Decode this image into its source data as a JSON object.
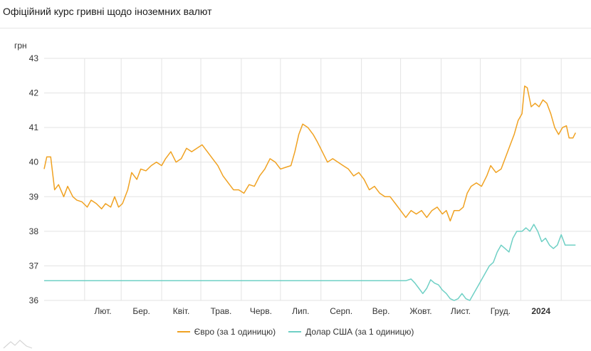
{
  "header": {
    "title": "Офіційний курс гривні щодо іноземних валют"
  },
  "colors": {
    "euro": "#f0a222",
    "usd": "#6fd0c5",
    "grid": "#e3e3e3"
  },
  "chart_data": {
    "type": "line",
    "title": "Офіційний курс гривні щодо іноземних валют",
    "ylabel": "грн",
    "xlabel": "",
    "ylim": [
      36,
      43
    ],
    "yticks": [
      36,
      37,
      38,
      39,
      40,
      41,
      42,
      43
    ],
    "grid": true,
    "legend_position": "bottom",
    "x_tick_labels": [
      "Лют.",
      "Бер.",
      "Квіт.",
      "Трав.",
      "Черв.",
      "Лип.",
      "Серп.",
      "Вер.",
      "Жовт.",
      "Лист.",
      "Груд.",
      "2024"
    ],
    "series": [
      {
        "name": "Євро (за 1 одиницю)",
        "color": "#f0a222",
        "points": [
          [
            "2023-01-01",
            39.8
          ],
          [
            "2023-01-03",
            40.15
          ],
          [
            "2023-01-06",
            40.15
          ],
          [
            "2023-01-09",
            39.2
          ],
          [
            "2023-01-12",
            39.35
          ],
          [
            "2023-01-16",
            39.0
          ],
          [
            "2023-01-19",
            39.3
          ],
          [
            "2023-01-23",
            39.0
          ],
          [
            "2023-01-26",
            38.9
          ],
          [
            "2023-01-30",
            38.85
          ],
          [
            "2023-02-03",
            38.7
          ],
          [
            "2023-02-06",
            38.9
          ],
          [
            "2023-02-10",
            38.8
          ],
          [
            "2023-02-14",
            38.65
          ],
          [
            "2023-02-17",
            38.8
          ],
          [
            "2023-02-21",
            38.7
          ],
          [
            "2023-02-24",
            39.0
          ],
          [
            "2023-02-27",
            38.7
          ],
          [
            "2023-03-02",
            38.8
          ],
          [
            "2023-03-06",
            39.2
          ],
          [
            "2023-03-09",
            39.7
          ],
          [
            "2023-03-13",
            39.5
          ],
          [
            "2023-03-16",
            39.8
          ],
          [
            "2023-03-20",
            39.75
          ],
          [
            "2023-03-24",
            39.9
          ],
          [
            "2023-03-28",
            40.0
          ],
          [
            "2023-04-01",
            39.9
          ],
          [
            "2023-04-04",
            40.1
          ],
          [
            "2023-04-08",
            40.3
          ],
          [
            "2023-04-12",
            40.0
          ],
          [
            "2023-04-16",
            40.1
          ],
          [
            "2023-04-20",
            40.4
          ],
          [
            "2023-04-24",
            40.3
          ],
          [
            "2023-04-28",
            40.4
          ],
          [
            "2023-05-02",
            40.5
          ],
          [
            "2023-05-06",
            40.3
          ],
          [
            "2023-05-10",
            40.1
          ],
          [
            "2023-05-14",
            39.9
          ],
          [
            "2023-05-18",
            39.6
          ],
          [
            "2023-05-22",
            39.4
          ],
          [
            "2023-05-26",
            39.2
          ],
          [
            "2023-05-30",
            39.2
          ],
          [
            "2023-06-03",
            39.1
          ],
          [
            "2023-06-07",
            39.35
          ],
          [
            "2023-06-11",
            39.3
          ],
          [
            "2023-06-15",
            39.6
          ],
          [
            "2023-06-19",
            39.8
          ],
          [
            "2023-06-23",
            40.1
          ],
          [
            "2023-06-27",
            40.0
          ],
          [
            "2023-07-01",
            39.8
          ],
          [
            "2023-07-05",
            39.85
          ],
          [
            "2023-07-09",
            39.9
          ],
          [
            "2023-07-12",
            40.3
          ],
          [
            "2023-07-15",
            40.8
          ],
          [
            "2023-07-18",
            41.1
          ],
          [
            "2023-07-22",
            41.0
          ],
          [
            "2023-07-26",
            40.8
          ],
          [
            "2023-07-29",
            40.6
          ],
          [
            "2023-08-02",
            40.3
          ],
          [
            "2023-08-06",
            40.0
          ],
          [
            "2023-08-10",
            40.1
          ],
          [
            "2023-08-14",
            40.0
          ],
          [
            "2023-08-18",
            39.9
          ],
          [
            "2023-08-22",
            39.8
          ],
          [
            "2023-08-26",
            39.6
          ],
          [
            "2023-08-30",
            39.7
          ],
          [
            "2023-09-03",
            39.5
          ],
          [
            "2023-09-07",
            39.2
          ],
          [
            "2023-09-11",
            39.3
          ],
          [
            "2023-09-15",
            39.1
          ],
          [
            "2023-09-19",
            39.0
          ],
          [
            "2023-09-23",
            39.0
          ],
          [
            "2023-09-27",
            38.8
          ],
          [
            "2023-10-01",
            38.6
          ],
          [
            "2023-10-05",
            38.4
          ],
          [
            "2023-10-09",
            38.6
          ],
          [
            "2023-10-13",
            38.5
          ],
          [
            "2023-10-17",
            38.6
          ],
          [
            "2023-10-21",
            38.4
          ],
          [
            "2023-10-25",
            38.6
          ],
          [
            "2023-10-29",
            38.7
          ],
          [
            "2023-11-02",
            38.5
          ],
          [
            "2023-11-05",
            38.6
          ],
          [
            "2023-11-08",
            38.3
          ],
          [
            "2023-11-11",
            38.6
          ],
          [
            "2023-11-15",
            38.6
          ],
          [
            "2023-11-18",
            38.7
          ],
          [
            "2023-11-21",
            39.1
          ],
          [
            "2023-11-24",
            39.3
          ],
          [
            "2023-11-28",
            39.4
          ],
          [
            "2023-12-02",
            39.3
          ],
          [
            "2023-12-06",
            39.6
          ],
          [
            "2023-12-09",
            39.9
          ],
          [
            "2023-12-13",
            39.7
          ],
          [
            "2023-12-17",
            39.8
          ],
          [
            "2023-12-21",
            40.2
          ],
          [
            "2023-12-24",
            40.5
          ],
          [
            "2023-12-27",
            40.8
          ],
          [
            "2023-12-30",
            41.2
          ],
          [
            "2024-01-02",
            41.4
          ],
          [
            "2024-01-04",
            42.2
          ],
          [
            "2024-01-06",
            42.15
          ],
          [
            "2024-01-09",
            41.6
          ],
          [
            "2024-01-12",
            41.7
          ],
          [
            "2024-01-15",
            41.6
          ],
          [
            "2024-01-18",
            41.8
          ],
          [
            "2024-01-21",
            41.7
          ],
          [
            "2024-01-24",
            41.4
          ],
          [
            "2024-01-27",
            41.0
          ],
          [
            "2024-01-30",
            40.8
          ],
          [
            "2024-02-02",
            41.0
          ],
          [
            "2024-02-05",
            41.05
          ],
          [
            "2024-02-07",
            40.7
          ],
          [
            "2024-02-10",
            40.7
          ],
          [
            "2024-02-12",
            40.85
          ]
        ]
      },
      {
        "name": "Долар США (за 1 одиницю)",
        "color": "#6fd0c5",
        "points": [
          [
            "2023-01-01",
            36.57
          ],
          [
            "2023-10-05",
            36.57
          ],
          [
            "2023-10-09",
            36.62
          ],
          [
            "2023-10-12",
            36.5
          ],
          [
            "2023-10-15",
            36.35
          ],
          [
            "2023-10-18",
            36.2
          ],
          [
            "2023-10-21",
            36.35
          ],
          [
            "2023-10-24",
            36.6
          ],
          [
            "2023-10-27",
            36.5
          ],
          [
            "2023-10-30",
            36.45
          ],
          [
            "2023-11-02",
            36.3
          ],
          [
            "2023-11-05",
            36.2
          ],
          [
            "2023-11-08",
            36.05
          ],
          [
            "2023-11-11",
            36.0
          ],
          [
            "2023-11-14",
            36.05
          ],
          [
            "2023-11-17",
            36.2
          ],
          [
            "2023-11-20",
            36.05
          ],
          [
            "2023-11-23",
            36.0
          ],
          [
            "2023-11-26",
            36.2
          ],
          [
            "2023-11-29",
            36.4
          ],
          [
            "2023-12-02",
            36.6
          ],
          [
            "2023-12-05",
            36.8
          ],
          [
            "2023-12-08",
            37.0
          ],
          [
            "2023-12-11",
            37.1
          ],
          [
            "2023-12-14",
            37.4
          ],
          [
            "2023-12-17",
            37.6
          ],
          [
            "2023-12-20",
            37.5
          ],
          [
            "2023-12-23",
            37.4
          ],
          [
            "2023-12-26",
            37.8
          ],
          [
            "2023-12-29",
            38.0
          ],
          [
            "2024-01-02",
            38.0
          ],
          [
            "2024-01-05",
            38.1
          ],
          [
            "2024-01-08",
            38.0
          ],
          [
            "2024-01-11",
            38.2
          ],
          [
            "2024-01-14",
            38.0
          ],
          [
            "2024-01-17",
            37.7
          ],
          [
            "2024-01-20",
            37.8
          ],
          [
            "2024-01-23",
            37.6
          ],
          [
            "2024-01-26",
            37.5
          ],
          [
            "2024-01-29",
            37.6
          ],
          [
            "2024-02-01",
            37.9
          ],
          [
            "2024-02-04",
            37.6
          ],
          [
            "2024-02-08",
            37.6
          ],
          [
            "2024-02-12",
            37.6
          ]
        ]
      }
    ]
  }
}
